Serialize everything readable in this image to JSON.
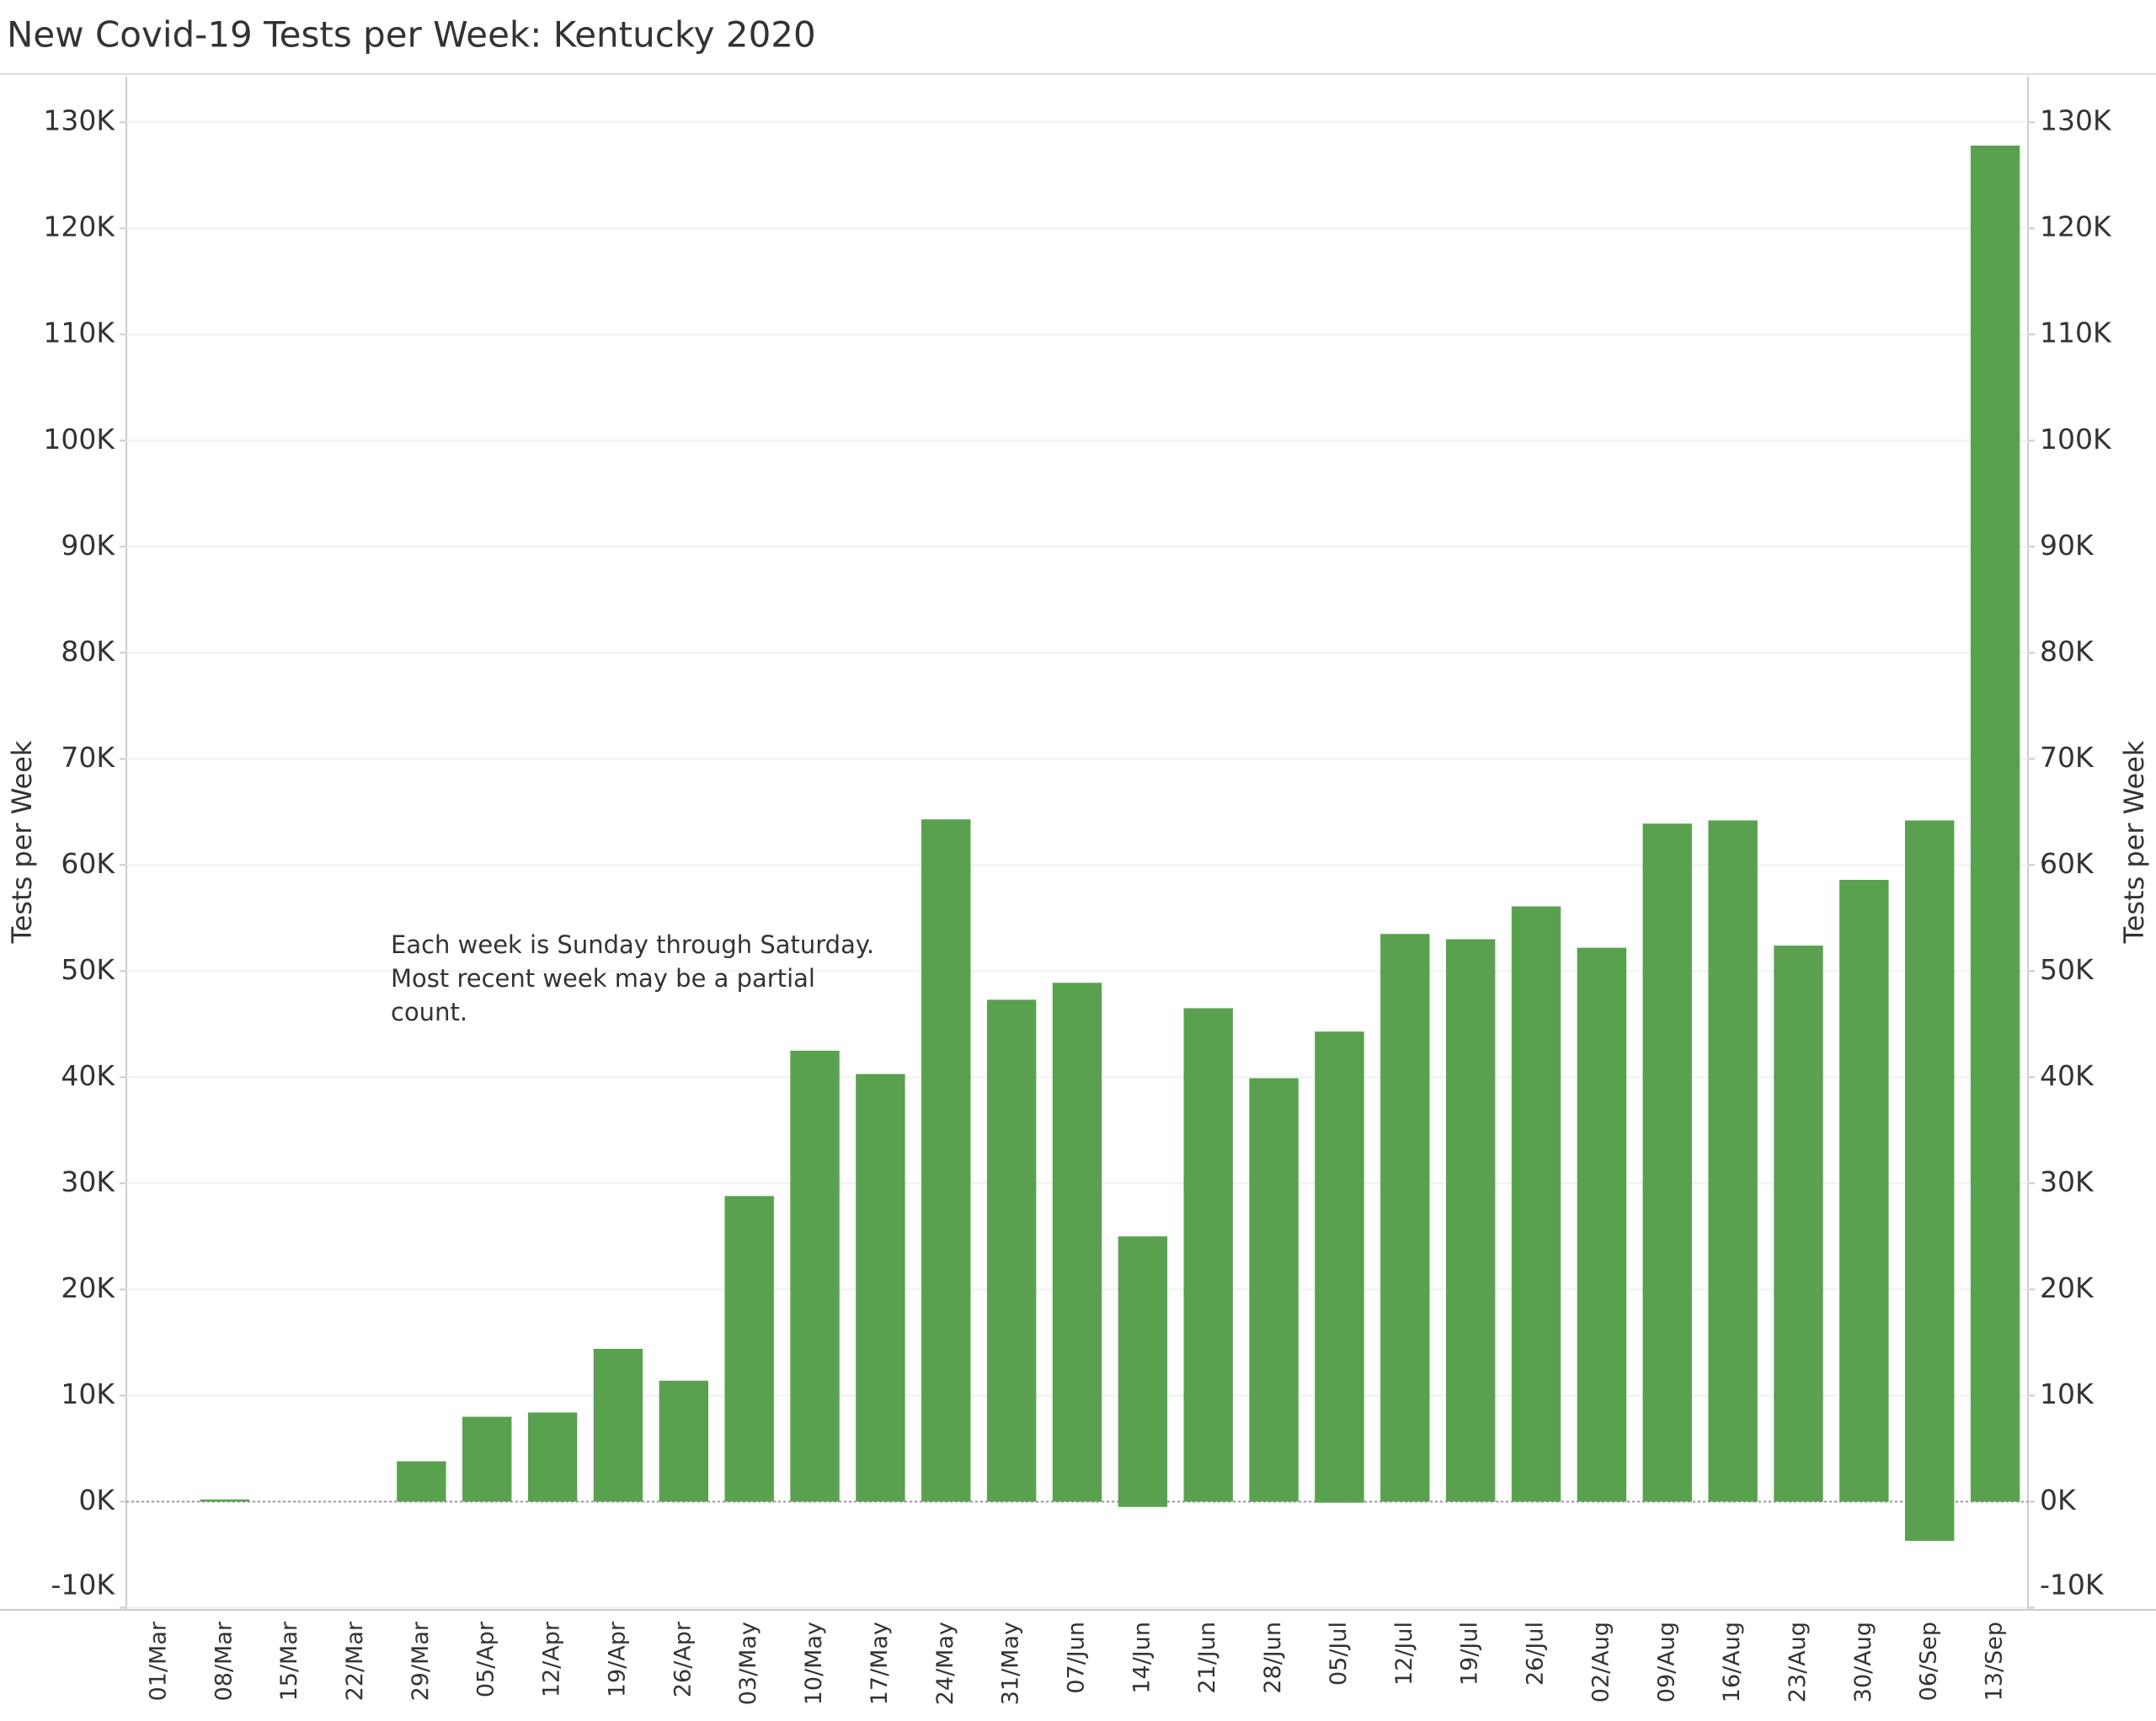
{
  "chart_data": {
    "type": "bar",
    "title": "New Covid-19 Tests per Week:  Kentucky 2020",
    "ylabel": "Tests per Week",
    "annotations": [
      "Each week is Sunday through Saturday.",
      "Most recent week may be a partial",
      "count."
    ],
    "categories": [
      "01/Mar",
      "08/Mar",
      "15/Mar",
      "22/Mar",
      "29/Mar",
      "05/Apr",
      "12/Apr",
      "19/Apr",
      "26/Apr",
      "03/May",
      "10/May",
      "17/May",
      "24/May",
      "31/May",
      "07/Jun",
      "14/Jun",
      "21/Jun",
      "28/Jun",
      "05/Jul",
      "12/Jul",
      "19/Jul",
      "26/Jul",
      "02/Aug",
      "09/Aug",
      "16/Aug",
      "23/Aug",
      "30/Aug",
      "06/Sep",
      "13/Sep"
    ],
    "series": [
      {
        "color": "#59a14f",
        "values": [
          0,
          200,
          0,
          0,
          3800,
          8000,
          8400,
          14400,
          11400,
          28800,
          42500,
          40300,
          64300,
          47300,
          48900,
          25000,
          46500,
          39900,
          44300,
          53500,
          53000,
          56100,
          52200,
          63900,
          64200,
          52400,
          58600,
          64200,
          127800
        ]
      },
      {
        "color": "#59a14f",
        "values": [
          null,
          null,
          null,
          null,
          null,
          null,
          null,
          null,
          null,
          null,
          null,
          null,
          null,
          null,
          null,
          -500,
          null,
          null,
          -100,
          null,
          null,
          null,
          null,
          null,
          null,
          null,
          null,
          -3700,
          null
        ]
      }
    ],
    "ylim": [
      -10200,
      134300
    ],
    "yticks": [
      {
        "value": -10000,
        "label": "-10K"
      },
      {
        "value": 0,
        "label": "0K"
      },
      {
        "value": 10000,
        "label": "10K"
      },
      {
        "value": 20000,
        "label": "20K"
      },
      {
        "value": 30000,
        "label": "30K"
      },
      {
        "value": 40000,
        "label": "40K"
      },
      {
        "value": 50000,
        "label": "50K"
      },
      {
        "value": 60000,
        "label": "60K"
      },
      {
        "value": 70000,
        "label": "70K"
      },
      {
        "value": 80000,
        "label": "80K"
      },
      {
        "value": 90000,
        "label": "90K"
      },
      {
        "value": 100000,
        "label": "100K"
      },
      {
        "value": 110000,
        "label": "110K"
      },
      {
        "value": 120000,
        "label": "120K"
      },
      {
        "value": 130000,
        "label": "130K"
      }
    ],
    "grid": true
  }
}
